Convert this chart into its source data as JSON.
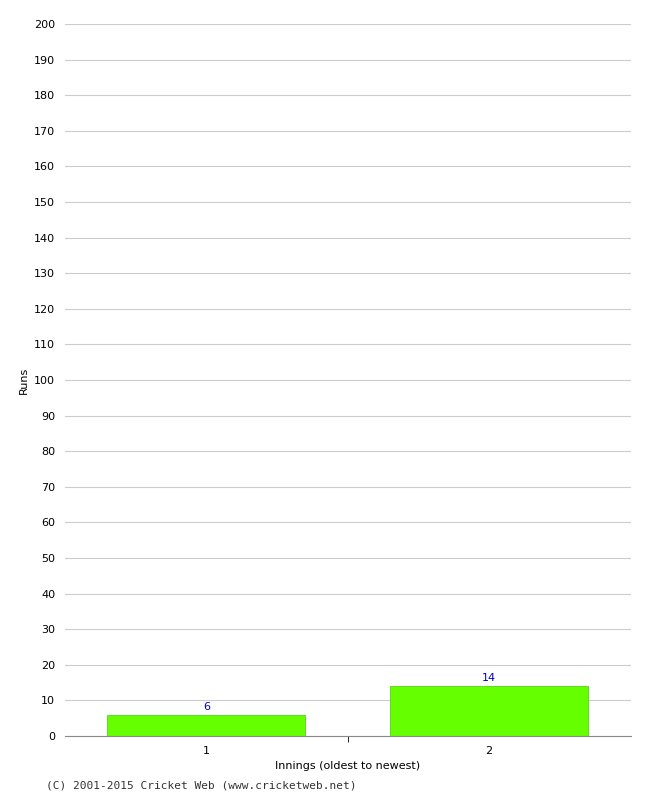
{
  "categories": [
    1,
    2
  ],
  "values": [
    6,
    14
  ],
  "bar_color": "#66ff00",
  "bar_edge_color": "#44cc00",
  "ylabel": "Runs",
  "xlabel": "Innings (oldest to newest)",
  "ylim": [
    0,
    200
  ],
  "ytick_step": 10,
  "background_color": "#ffffff",
  "grid_color": "#cccccc",
  "label_color": "#0000cc",
  "footer": "(C) 2001-2015 Cricket Web (www.cricketweb.net)",
  "bar_width": 0.7,
  "xlim": [
    0.5,
    2.5
  ]
}
